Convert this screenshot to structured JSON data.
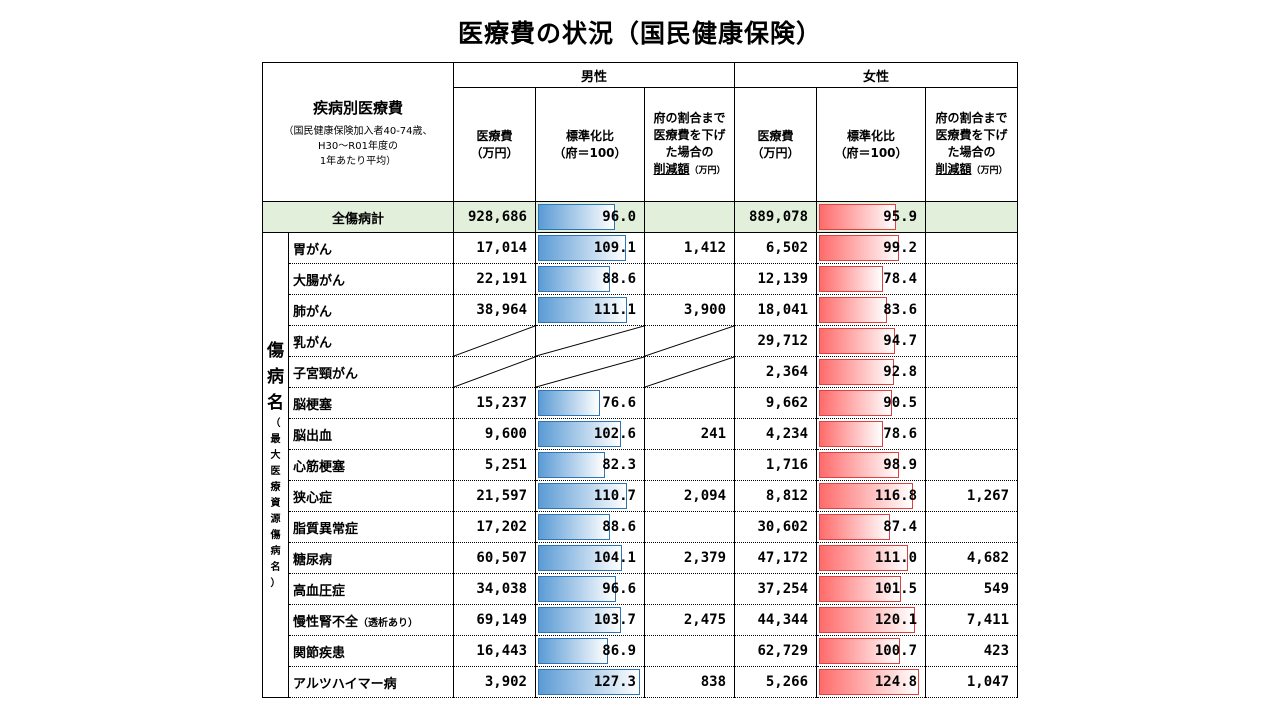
{
  "title": "医療費の状況（国民健康保険）",
  "header": {
    "main_label": "疾病別医療費",
    "note_line1": "（国民健康保険加入者40-74歳、",
    "note_line2": "H30～R01年度の",
    "note_line3": "1年あたり平均）",
    "male": "男性",
    "female": "女性",
    "cost": "医療費",
    "cost_unit": "（万円）",
    "ratio": "標準化比",
    "ratio_unit": "（府＝100）",
    "reduce_line1": "府の割合まで",
    "reduce_line2": "医療費を下げ",
    "reduce_line3": "た場合の",
    "reduce_word": "削減額",
    "reduce_unit": "（万円）"
  },
  "category": {
    "main": [
      "傷",
      "病",
      "名"
    ],
    "sub": [
      "（",
      "最",
      "大",
      "医",
      "療",
      "資",
      "源",
      "傷",
      "病",
      "名",
      "）"
    ]
  },
  "total": {
    "name": "全傷病計",
    "m_cost": "928,686",
    "m_ratio": 96.0,
    "m_ratio_text": "96.0",
    "m_reduce": "",
    "f_cost": "889,078",
    "f_ratio": 95.9,
    "f_ratio_text": "95.9",
    "f_reduce": ""
  },
  "rows": [
    {
      "name": "胃がん",
      "m_cost": "17,014",
      "m_ratio": 109.1,
      "m_ratio_text": "109.1",
      "m_reduce": "1,412",
      "f_cost": "6,502",
      "f_ratio": 99.2,
      "f_ratio_text": "99.2",
      "f_reduce": ""
    },
    {
      "name": "大腸がん",
      "m_cost": "22,191",
      "m_ratio": 88.6,
      "m_ratio_text": "88.6",
      "m_reduce": "",
      "f_cost": "12,139",
      "f_ratio": 78.4,
      "f_ratio_text": "78.4",
      "f_reduce": ""
    },
    {
      "name": "肺がん",
      "m_cost": "38,964",
      "m_ratio": 111.1,
      "m_ratio_text": "111.1",
      "m_reduce": "3,900",
      "f_cost": "18,041",
      "f_ratio": 83.6,
      "f_ratio_text": "83.6",
      "f_reduce": ""
    },
    {
      "name": "乳がん",
      "male_na": true,
      "f_cost": "29,712",
      "f_ratio": 94.7,
      "f_ratio_text": "94.7",
      "f_reduce": ""
    },
    {
      "name": "子宮頸がん",
      "male_na": true,
      "f_cost": "2,364",
      "f_ratio": 92.8,
      "f_ratio_text": "92.8",
      "f_reduce": ""
    },
    {
      "name": "脳梗塞",
      "m_cost": "15,237",
      "m_ratio": 76.6,
      "m_ratio_text": "76.6",
      "m_reduce": "",
      "f_cost": "9,662",
      "f_ratio": 90.5,
      "f_ratio_text": "90.5",
      "f_reduce": ""
    },
    {
      "name": "脳出血",
      "m_cost": "9,600",
      "m_ratio": 102.6,
      "m_ratio_text": "102.6",
      "m_reduce": "241",
      "f_cost": "4,234",
      "f_ratio": 78.6,
      "f_ratio_text": "78.6",
      "f_reduce": ""
    },
    {
      "name": "心筋梗塞",
      "m_cost": "5,251",
      "m_ratio": 82.3,
      "m_ratio_text": "82.3",
      "m_reduce": "",
      "f_cost": "1,716",
      "f_ratio": 98.9,
      "f_ratio_text": "98.9",
      "f_reduce": ""
    },
    {
      "name": "狭心症",
      "m_cost": "21,597",
      "m_ratio": 110.7,
      "m_ratio_text": "110.7",
      "m_reduce": "2,094",
      "f_cost": "8,812",
      "f_ratio": 116.8,
      "f_ratio_text": "116.8",
      "f_reduce": "1,267"
    },
    {
      "name": "脂質異常症",
      "m_cost": "17,202",
      "m_ratio": 88.6,
      "m_ratio_text": "88.6",
      "m_reduce": "",
      "f_cost": "30,602",
      "f_ratio": 87.4,
      "f_ratio_text": "87.4",
      "f_reduce": ""
    },
    {
      "name": "糖尿病",
      "m_cost": "60,507",
      "m_ratio": 104.1,
      "m_ratio_text": "104.1",
      "m_reduce": "2,379",
      "f_cost": "47,172",
      "f_ratio": 111.0,
      "f_ratio_text": "111.0",
      "f_reduce": "4,682"
    },
    {
      "name": "高血圧症",
      "m_cost": "34,038",
      "m_ratio": 96.6,
      "m_ratio_text": "96.6",
      "m_reduce": "",
      "f_cost": "37,254",
      "f_ratio": 101.5,
      "f_ratio_text": "101.5",
      "f_reduce": "549"
    },
    {
      "name": "慢性腎不全",
      "name_note": "（透析あり）",
      "m_cost": "69,149",
      "m_ratio": 103.7,
      "m_ratio_text": "103.7",
      "m_reduce": "2,475",
      "f_cost": "44,344",
      "f_ratio": 120.1,
      "f_ratio_text": "120.1",
      "f_reduce": "7,411"
    },
    {
      "name": "関節疾患",
      "m_cost": "16,443",
      "m_ratio": 86.9,
      "m_ratio_text": "86.9",
      "m_reduce": "",
      "f_cost": "62,729",
      "f_ratio": 100.7,
      "f_ratio_text": "100.7",
      "f_reduce": "423"
    },
    {
      "name": "アルツハイマー病",
      "m_cost": "3,902",
      "m_ratio": 127.3,
      "m_ratio_text": "127.3",
      "m_reduce": "838",
      "f_cost": "5,266",
      "f_ratio": 124.8,
      "f_ratio_text": "124.8",
      "f_reduce": "1,047"
    }
  ],
  "colors": {
    "total_bg": "#e2efda",
    "male_bar": "#5b9bd5",
    "female_bar": "#ff6b6b"
  }
}
